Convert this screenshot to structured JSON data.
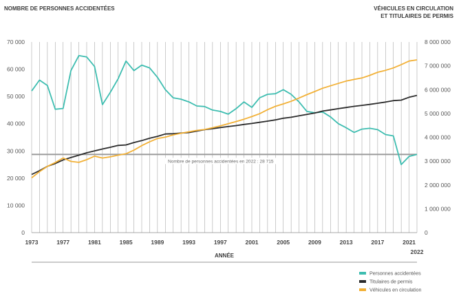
{
  "chart_data": {
    "type": "line",
    "title_left": "NOMBRE DE PERSONNES ACCIDENTÉES",
    "title_right_line1": "VÉHICULES EN CIRCULATION",
    "title_right_line2": "ET TITULAIRES DE PERMIS",
    "xlabel": "ANNÉE",
    "x_extra_label": "2022",
    "x_tick_labels": [
      "1973",
      "1977",
      "1981",
      "1985",
      "1989",
      "1993",
      "1997",
      "2001",
      "2005",
      "2009",
      "2013",
      "2017",
      "2021"
    ],
    "x": [
      1973,
      1974,
      1975,
      1976,
      1977,
      1978,
      1979,
      1980,
      1981,
      1982,
      1983,
      1984,
      1985,
      1986,
      1987,
      1988,
      1989,
      1990,
      1991,
      1992,
      1993,
      1994,
      1995,
      1996,
      1997,
      1998,
      1999,
      2000,
      2001,
      2002,
      2003,
      2004,
      2005,
      2006,
      2007,
      2008,
      2009,
      2010,
      2011,
      2012,
      2013,
      2014,
      2015,
      2016,
      2017,
      2018,
      2019,
      2020,
      2021,
      2022
    ],
    "xlim": [
      1973,
      2022
    ],
    "ylim_left": [
      0,
      70000
    ],
    "ylim_right": [
      0,
      8000000
    ],
    "yticks_left": [
      "0",
      "10 000",
      "20 000",
      "30 000",
      "40 000",
      "50 000",
      "60 000",
      "70 000"
    ],
    "yticks_right": [
      "0",
      "1 000 000",
      "2 000 000",
      "3 000 000",
      "4 000 000",
      "5 000 000",
      "6 000 000",
      "7 000 000",
      "8 000 000"
    ],
    "grid": "vertical lines at each year",
    "reference_line": {
      "value": 28715,
      "label": "Nombre de personnes accidentées en 2022 : 28 715"
    },
    "legend_position": "bottom-right",
    "series": [
      {
        "name": "Personnes accidentées",
        "axis": "left",
        "color": "#3dbdb0",
        "values": [
          52000,
          56000,
          54000,
          45300,
          45600,
          59500,
          65000,
          64500,
          61000,
          47000,
          51500,
          56500,
          63000,
          59500,
          61500,
          60500,
          57000,
          52500,
          49500,
          49000,
          48000,
          46500,
          46300,
          45000,
          44500,
          43500,
          45500,
          48000,
          46000,
          49500,
          50800,
          51000,
          52500,
          50800,
          48000,
          44500,
          44000,
          44300,
          42500,
          40000,
          38500,
          36800,
          38000,
          38300,
          37800,
          36000,
          35500,
          25000,
          28000,
          28715
        ]
      },
      {
        "name": "Titulaires de permis",
        "axis": "right",
        "color": "#2a2a2a",
        "values": [
          2440000,
          2600000,
          2780000,
          2900000,
          3050000,
          3150000,
          3250000,
          3350000,
          3430000,
          3510000,
          3580000,
          3660000,
          3680000,
          3780000,
          3860000,
          3960000,
          4040000,
          4140000,
          4150000,
          4180000,
          4200000,
          4260000,
          4320000,
          4360000,
          4410000,
          4450000,
          4490000,
          4540000,
          4580000,
          4630000,
          4680000,
          4730000,
          4800000,
          4840000,
          4900000,
          4960000,
          5020000,
          5100000,
          5150000,
          5200000,
          5250000,
          5300000,
          5340000,
          5380000,
          5430000,
          5480000,
          5540000,
          5560000,
          5680000,
          5760000
        ]
      },
      {
        "name": "Véhicules en circulation",
        "axis": "right",
        "color": "#f2b035",
        "values": [
          2300000,
          2560000,
          2780000,
          2940000,
          3130000,
          2990000,
          2950000,
          3060000,
          3210000,
          3130000,
          3180000,
          3250000,
          3310000,
          3460000,
          3650000,
          3810000,
          3950000,
          4010000,
          4100000,
          4170000,
          4230000,
          4290000,
          4330000,
          4400000,
          4480000,
          4570000,
          4660000,
          4760000,
          4870000,
          4990000,
          5160000,
          5300000,
          5400000,
          5510000,
          5650000,
          5790000,
          5920000,
          6060000,
          6160000,
          6260000,
          6360000,
          6430000,
          6490000,
          6600000,
          6730000,
          6810000,
          6910000,
          7050000,
          7200000,
          7250000
        ]
      }
    ]
  }
}
